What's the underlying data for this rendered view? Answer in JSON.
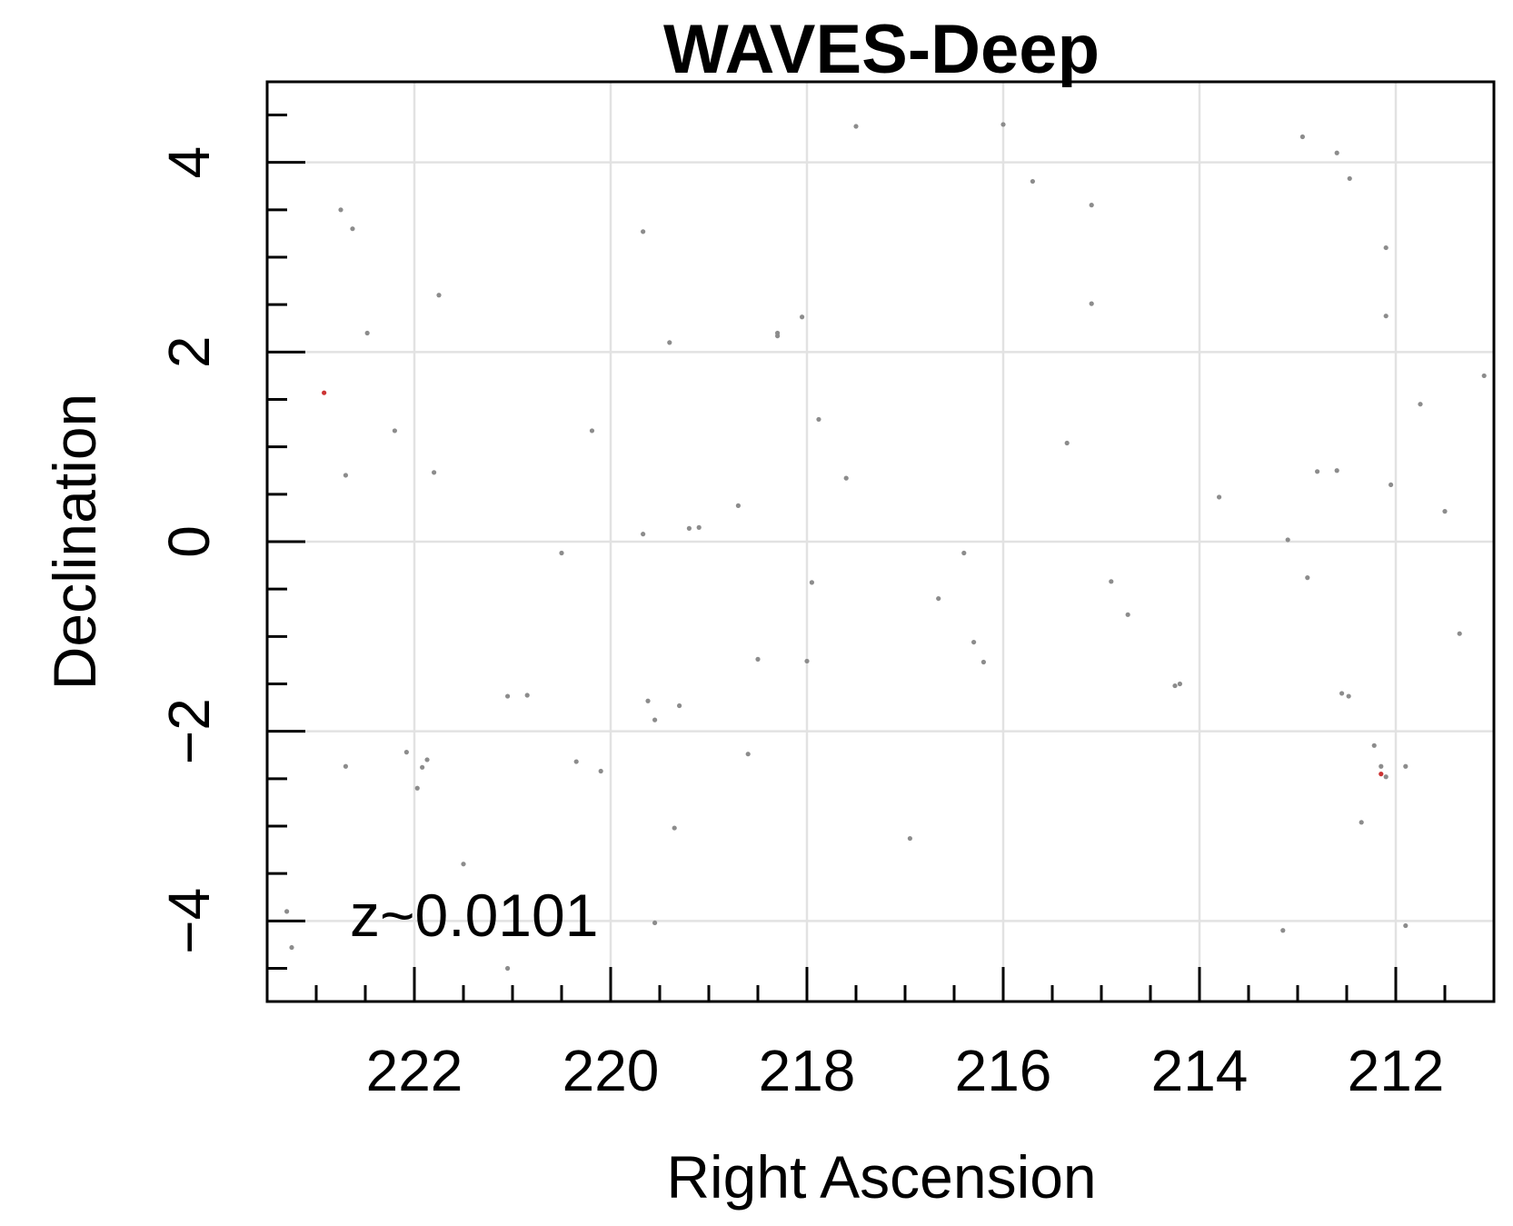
{
  "chart_data": {
    "type": "scatter",
    "title": "WAVES-Deep",
    "xlabel": "Right Ascension",
    "ylabel": "Declination",
    "annotation": "z~0.0101",
    "xlim": [
      223.5,
      211.0
    ],
    "ylim": [
      -4.85,
      4.85
    ],
    "x_ticks": [
      222,
      220,
      218,
      216,
      214,
      212
    ],
    "y_ticks": [
      4,
      2,
      0,
      -2,
      -4
    ],
    "x_minor_step": 0.5,
    "y_minor_step": 0.5,
    "grid": true,
    "colors": {
      "point": "#8c8c8c",
      "highlight": "#cc3333",
      "grid": "#e2e2e2",
      "frame": "#000000"
    },
    "series": [
      {
        "color": "#8c8c8c",
        "points": [
          [
            222.75,
            3.5
          ],
          [
            222.63,
            3.3
          ],
          [
            222.48,
            2.2
          ],
          [
            221.75,
            2.6
          ],
          [
            222.2,
            1.17
          ],
          [
            222.7,
            0.7
          ],
          [
            221.8,
            0.73
          ],
          [
            223.3,
            -3.9
          ],
          [
            223.25,
            -4.28
          ],
          [
            222.7,
            -2.37
          ],
          [
            222.08,
            -2.22
          ],
          [
            221.97,
            -2.6
          ],
          [
            221.92,
            -2.38
          ],
          [
            221.87,
            -2.3
          ],
          [
            221.5,
            -3.4
          ],
          [
            221.05,
            -1.63
          ],
          [
            220.85,
            -1.62
          ],
          [
            221.05,
            -4.5
          ],
          [
            220.5,
            -0.12
          ],
          [
            220.19,
            1.17
          ],
          [
            220.35,
            -2.32
          ],
          [
            220.1,
            -2.42
          ],
          [
            219.67,
            3.27
          ],
          [
            219.4,
            2.1
          ],
          [
            219.67,
            0.08
          ],
          [
            219.62,
            -1.68
          ],
          [
            219.55,
            -1.88
          ],
          [
            219.3,
            -1.73
          ],
          [
            219.2,
            0.14
          ],
          [
            219.1,
            0.15
          ],
          [
            218.7,
            0.38
          ],
          [
            219.35,
            -3.02
          ],
          [
            219.55,
            -4.02
          ],
          [
            218.6,
            -2.24
          ],
          [
            218.5,
            -1.24
          ],
          [
            218.3,
            2.2
          ],
          [
            218.3,
            2.17
          ],
          [
            218.05,
            2.37
          ],
          [
            217.5,
            4.38
          ],
          [
            217.88,
            1.29
          ],
          [
            217.95,
            -0.43
          ],
          [
            217.6,
            0.67
          ],
          [
            218.0,
            -1.26
          ],
          [
            216.95,
            -3.13
          ],
          [
            216.66,
            -0.6
          ],
          [
            216.4,
            -0.12
          ],
          [
            216.3,
            -1.06
          ],
          [
            216.2,
            -1.27
          ],
          [
            216.0,
            4.4
          ],
          [
            215.7,
            3.8
          ],
          [
            215.35,
            1.04
          ],
          [
            215.1,
            3.55
          ],
          [
            215.1,
            2.51
          ],
          [
            214.9,
            -0.42
          ],
          [
            214.73,
            -0.77
          ],
          [
            214.25,
            -1.52
          ],
          [
            214.2,
            -1.5
          ],
          [
            213.8,
            0.47
          ],
          [
            212.95,
            4.27
          ],
          [
            212.6,
            4.1
          ],
          [
            212.47,
            3.83
          ],
          [
            212.8,
            0.74
          ],
          [
            213.1,
            0.02
          ],
          [
            212.9,
            -0.38
          ],
          [
            212.55,
            -1.6
          ],
          [
            212.48,
            -1.63
          ],
          [
            212.22,
            -2.15
          ],
          [
            212.1,
            -2.48
          ],
          [
            212.15,
            -2.37
          ],
          [
            211.9,
            -2.37
          ],
          [
            212.35,
            -2.96
          ],
          [
            211.9,
            -4.05
          ],
          [
            212.6,
            0.75
          ],
          [
            212.1,
            3.1
          ],
          [
            212.1,
            2.38
          ],
          [
            212.05,
            0.6
          ],
          [
            211.75,
            1.45
          ],
          [
            211.5,
            0.32
          ],
          [
            211.35,
            -0.97
          ],
          [
            211.1,
            1.75
          ],
          [
            213.15,
            -4.1
          ]
        ]
      },
      {
        "color": "#cc3333",
        "points": [
          [
            222.92,
            1.57
          ],
          [
            212.15,
            -2.45
          ]
        ]
      }
    ]
  }
}
